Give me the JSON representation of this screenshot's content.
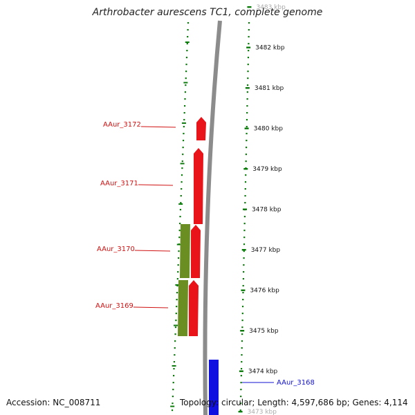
{
  "title": "Arthrobacter aurescens TC1, complete genome",
  "footer": {
    "accession": "Accession: NC_008711",
    "info": "Topology: circular; Length: 4,597,686 bp; Genes: 4,114"
  },
  "ticks": [
    {
      "label": "3483 kbp"
    },
    {
      "label": "3482 kbp"
    },
    {
      "label": "3481 kbp"
    },
    {
      "label": "3480 kbp"
    },
    {
      "label": "3479 kbp"
    },
    {
      "label": "3478 kbp"
    },
    {
      "label": "3477 kbp"
    },
    {
      "label": "3476 kbp"
    },
    {
      "label": "3475 kbp"
    },
    {
      "label": "3474 kbp"
    },
    {
      "label": "3473 kbp"
    }
  ],
  "genes": [
    {
      "label": "AAur_3172",
      "strand": "forward",
      "color": "#e8141a"
    },
    {
      "label": "AAur_3171",
      "strand": "forward",
      "color": "#e8141a"
    },
    {
      "label": "AAur_3170",
      "strand": "forward",
      "color": "#e8141a"
    },
    {
      "label": "AAur_3169",
      "strand": "forward",
      "color": "#e8141a"
    },
    {
      "label": "AAur_3168",
      "strand": "reverse",
      "color": "#1010e0"
    }
  ],
  "colors": {
    "backbone": "#8c8c8c",
    "tick_marks": "#0a7a0a",
    "olive_feature": "#6b8e23",
    "label_forward": "#d01010",
    "label_reverse": "#1010d0"
  }
}
